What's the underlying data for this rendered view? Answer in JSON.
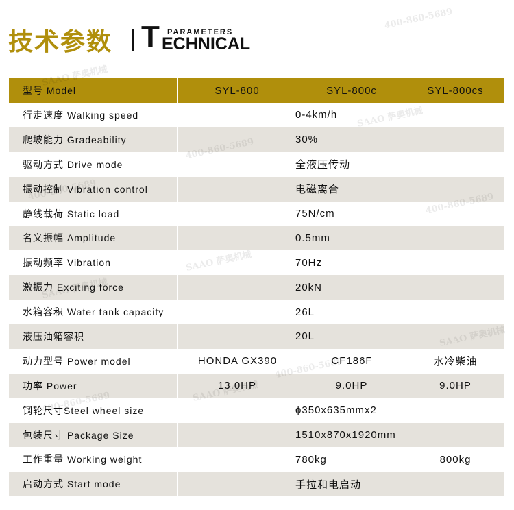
{
  "title": {
    "cn": "技术参数",
    "en_small": "PARAMETERS",
    "en_big_initial": "T",
    "en_big_rest": "ECHNICAL"
  },
  "watermark": {
    "brand": "SAAO 萨奥机械",
    "phone": "400-860-5689"
  },
  "colors": {
    "header": "#b08f0c",
    "stripe": "#e5e2dc"
  },
  "header": [
    "型号 Model",
    "SYL-800",
    "SYL-800c",
    "SYL-800cs"
  ],
  "rows": [
    {
      "label": "行走速度 Walking speed",
      "values": [
        "0-4km/h"
      ],
      "layout": "span"
    },
    {
      "label": "爬坡能力 Gradeability",
      "values": [
        "30%"
      ],
      "layout": "span"
    },
    {
      "label": "驱动方式 Drive mode",
      "values": [
        "全液压传动"
      ],
      "layout": "span"
    },
    {
      "label": "振动控制 Vibration control",
      "values": [
        "电磁离合"
      ],
      "layout": "span"
    },
    {
      "label": "静线载荷 Static load",
      "values": [
        "75N/cm"
      ],
      "layout": "span"
    },
    {
      "label": "名义振幅 Amplitude",
      "values": [
        "0.5mm"
      ],
      "layout": "span"
    },
    {
      "label": "振动频率 Vibration",
      "values": [
        "70Hz"
      ],
      "layout": "span"
    },
    {
      "label": "激振力 Exciting force",
      "values": [
        "20kN"
      ],
      "layout": "span"
    },
    {
      "label": "水箱容积 Water tank capacity",
      "values": [
        "26L"
      ],
      "layout": "span"
    },
    {
      "label": "液压油箱容积",
      "values": [
        "20L"
      ],
      "layout": "span"
    },
    {
      "label": "动力型号 Power model",
      "values": [
        "HONDA GX390",
        "CF186F",
        "水冷柴油"
      ],
      "layout": "three"
    },
    {
      "label": "功率 Power",
      "values": [
        "13.0HP",
        "9.0HP",
        "9.0HP"
      ],
      "layout": "three"
    },
    {
      "label": "钢轮尺寸Steel wheel size",
      "values": [
        "ϕ350x635mmx2"
      ],
      "layout": "span"
    },
    {
      "label": "包装尺寸 Package Size",
      "values": [
        "1510x870x1920mm"
      ],
      "layout": "span"
    },
    {
      "label": "工作重量 Working weight",
      "values": [
        "780kg",
        "800kg"
      ],
      "layout": "two"
    },
    {
      "label": "启动方式 Start mode",
      "values": [
        "手拉和电启动"
      ],
      "layout": "span"
    }
  ]
}
